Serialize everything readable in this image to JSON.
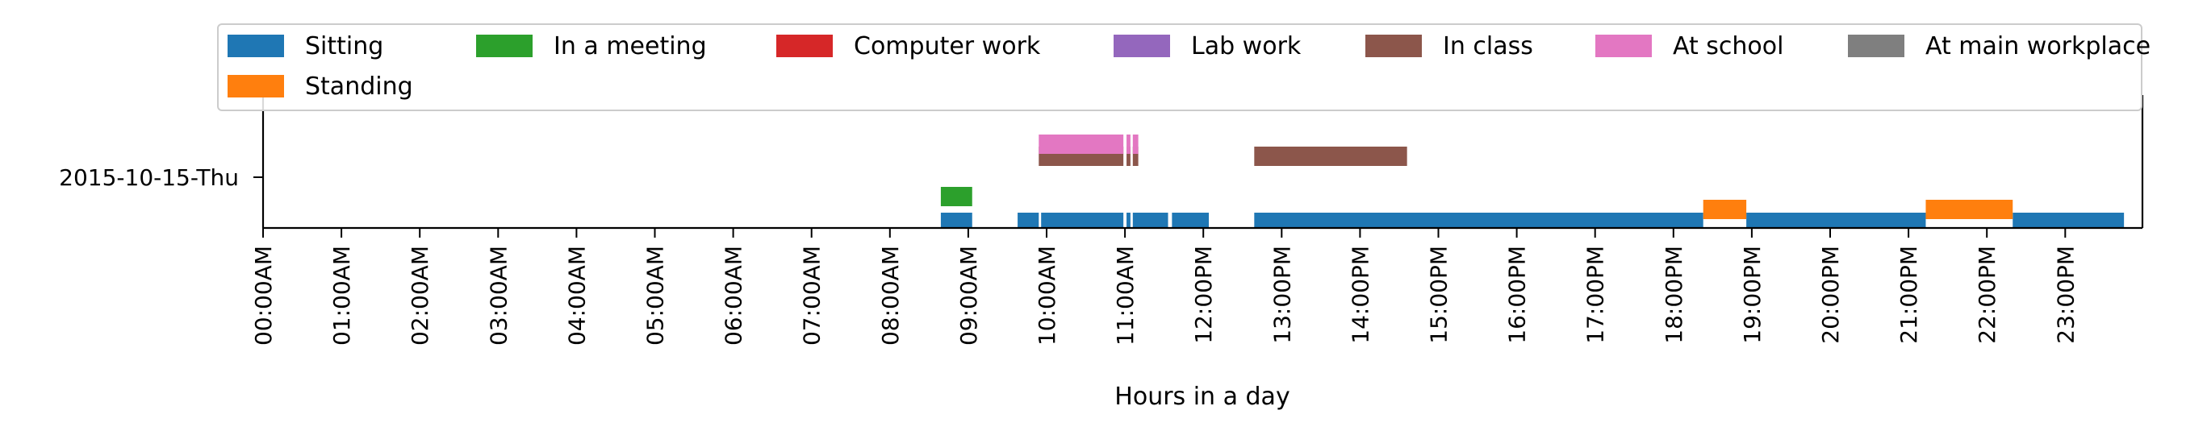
{
  "chart_data": {
    "type": "timeline",
    "xlabel": "Hours in a day",
    "xlim": [
      0,
      24
    ],
    "x_ticks": [
      "00:00AM",
      "01:00AM",
      "02:00AM",
      "03:00AM",
      "04:00AM",
      "05:00AM",
      "06:00AM",
      "07:00AM",
      "08:00AM",
      "09:00AM",
      "10:00AM",
      "11:00AM",
      "12:00PM",
      "13:00PM",
      "14:00PM",
      "15:00PM",
      "16:00PM",
      "17:00PM",
      "18:00PM",
      "19:00PM",
      "20:00PM",
      "21:00PM",
      "22:00PM",
      "23:00PM"
    ],
    "y_categories": [
      "2015-10-15-Thu"
    ],
    "legend_position": "top",
    "series": [
      {
        "name": "Sitting",
        "color": "#1f77b4",
        "level": 0,
        "intervals": [
          [
            8.65,
            9.05
          ],
          [
            9.63,
            9.9
          ],
          [
            9.93,
            10.98
          ],
          [
            11.02,
            11.07
          ],
          [
            11.1,
            11.55
          ],
          [
            11.6,
            12.07
          ],
          [
            12.65,
            18.38
          ],
          [
            18.93,
            21.22
          ],
          [
            22.33,
            23.75
          ]
        ]
      },
      {
        "name": "In a meeting",
        "color": "#2ca02c",
        "level": 1,
        "intervals": [
          [
            8.65,
            9.05
          ]
        ]
      },
      {
        "name": "Computer work",
        "color": "#d62728",
        "level": 2,
        "intervals": []
      },
      {
        "name": "Lab work",
        "color": "#9467bd",
        "level": 2,
        "intervals": []
      },
      {
        "name": "In class",
        "color": "#8c564b",
        "level": 2,
        "intervals": [
          [
            9.9,
            10.98
          ],
          [
            11.02,
            11.07
          ],
          [
            11.1,
            11.17
          ],
          [
            12.65,
            14.6
          ]
        ]
      },
      {
        "name": "At school",
        "color": "#e377c2",
        "level": 3,
        "intervals": [
          [
            9.9,
            10.98
          ],
          [
            11.02,
            11.07
          ],
          [
            11.1,
            11.17
          ]
        ]
      },
      {
        "name": "At main workplace",
        "color": "#7f7f7f",
        "level": 3,
        "intervals": []
      },
      {
        "name": "Standing",
        "color": "#ff7f0e",
        "level": 1,
        "intervals": [
          [
            18.38,
            18.93
          ],
          [
            21.22,
            22.33
          ]
        ]
      }
    ]
  }
}
